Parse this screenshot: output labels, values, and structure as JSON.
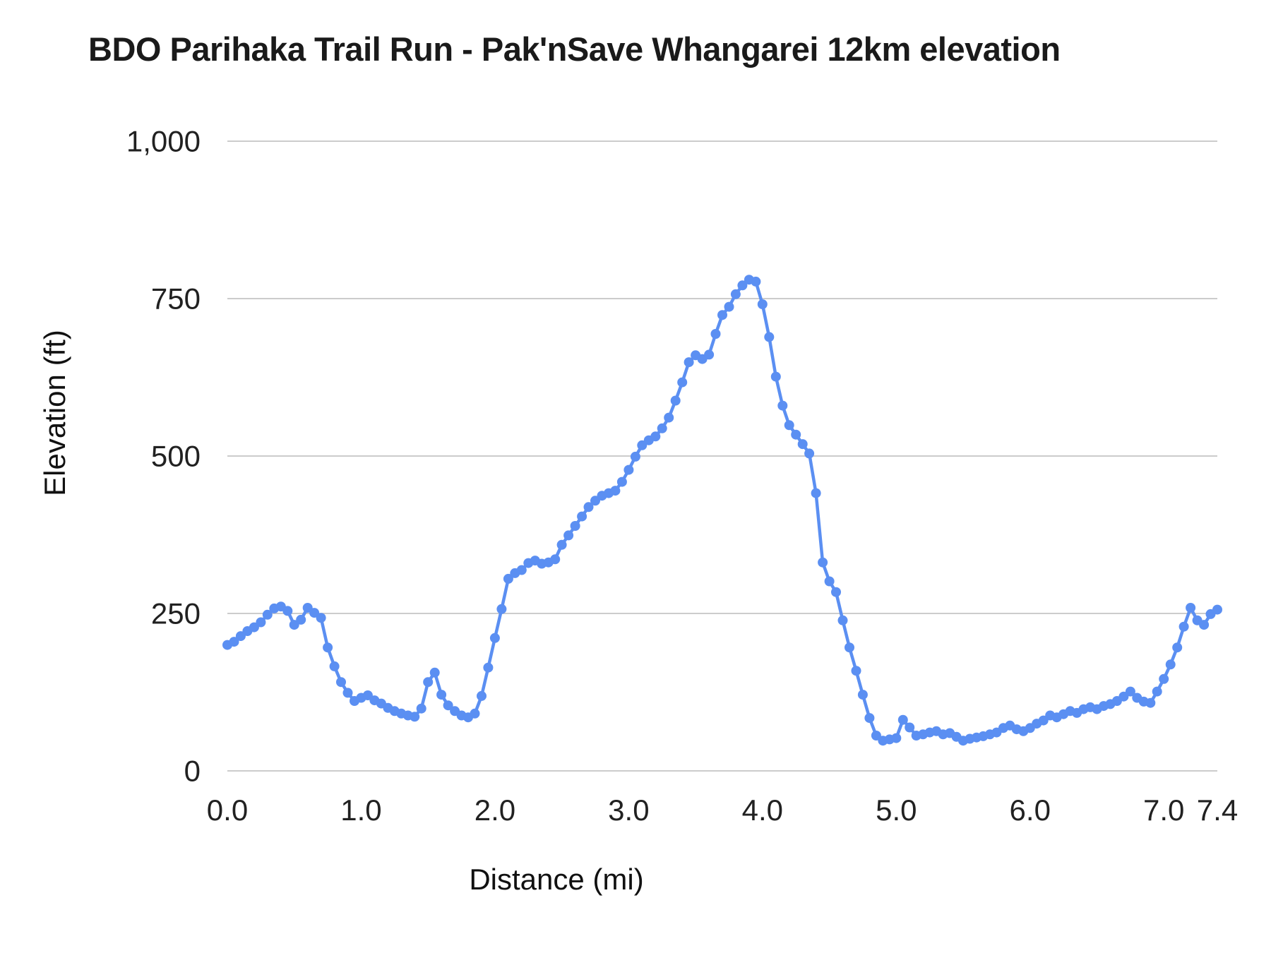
{
  "chart_data": {
    "type": "line",
    "title": "BDO Parihaka Trail Run - Pak'nSave Whangarei 12km elevation",
    "xlabel": "Distance (mi)",
    "ylabel": "Elevation (ft)",
    "xlim": [
      0,
      7.4
    ],
    "ylim": [
      0,
      1000
    ],
    "grid": true,
    "legend_position": "none",
    "line_color": "#5b8ff2",
    "gridline_color": "#cccccc",
    "point_radius": 7,
    "x_ticks": {
      "values": [
        0,
        1,
        2,
        3,
        4,
        5,
        6,
        7,
        7.4
      ],
      "labels": [
        "0.0",
        "1.0",
        "2.0",
        "3.0",
        "4.0",
        "5.0",
        "6.0",
        "7.0",
        "7.4"
      ]
    },
    "y_ticks": {
      "values": [
        0,
        250,
        500,
        750,
        1000
      ],
      "labels": [
        "0",
        "250",
        "500",
        "750",
        "1,000"
      ]
    },
    "series": [
      {
        "name": "Elevation",
        "points": [
          [
            0.0,
            200
          ],
          [
            0.05,
            205
          ],
          [
            0.1,
            214
          ],
          [
            0.15,
            222
          ],
          [
            0.2,
            228
          ],
          [
            0.25,
            236
          ],
          [
            0.3,
            248
          ],
          [
            0.35,
            258
          ],
          [
            0.4,
            261
          ],
          [
            0.45,
            254
          ],
          [
            0.5,
            232
          ],
          [
            0.55,
            240
          ],
          [
            0.6,
            259
          ],
          [
            0.65,
            251
          ],
          [
            0.7,
            243
          ],
          [
            0.75,
            196
          ],
          [
            0.8,
            166
          ],
          [
            0.85,
            141
          ],
          [
            0.9,
            124
          ],
          [
            0.95,
            111
          ],
          [
            1.0,
            116
          ],
          [
            1.05,
            120
          ],
          [
            1.1,
            112
          ],
          [
            1.15,
            107
          ],
          [
            1.2,
            100
          ],
          [
            1.25,
            95
          ],
          [
            1.3,
            91
          ],
          [
            1.35,
            88
          ],
          [
            1.4,
            86
          ],
          [
            1.45,
            99
          ],
          [
            1.5,
            141
          ],
          [
            1.55,
            156
          ],
          [
            1.6,
            121
          ],
          [
            1.65,
            104
          ],
          [
            1.7,
            95
          ],
          [
            1.75,
            88
          ],
          [
            1.8,
            85
          ],
          [
            1.85,
            91
          ],
          [
            1.9,
            119
          ],
          [
            1.95,
            164
          ],
          [
            2.0,
            211
          ],
          [
            2.05,
            257
          ],
          [
            2.1,
            305
          ],
          [
            2.15,
            314
          ],
          [
            2.2,
            319
          ],
          [
            2.25,
            330
          ],
          [
            2.3,
            334
          ],
          [
            2.35,
            329
          ],
          [
            2.4,
            331
          ],
          [
            2.45,
            336
          ],
          [
            2.5,
            359
          ],
          [
            2.55,
            374
          ],
          [
            2.6,
            389
          ],
          [
            2.65,
            404
          ],
          [
            2.7,
            419
          ],
          [
            2.75,
            429
          ],
          [
            2.8,
            437
          ],
          [
            2.85,
            441
          ],
          [
            2.9,
            445
          ],
          [
            2.95,
            459
          ],
          [
            3.0,
            478
          ],
          [
            3.05,
            499
          ],
          [
            3.1,
            517
          ],
          [
            3.15,
            525
          ],
          [
            3.2,
            531
          ],
          [
            3.25,
            544
          ],
          [
            3.3,
            561
          ],
          [
            3.35,
            588
          ],
          [
            3.4,
            617
          ],
          [
            3.45,
            649
          ],
          [
            3.5,
            660
          ],
          [
            3.55,
            654
          ],
          [
            3.6,
            661
          ],
          [
            3.65,
            694
          ],
          [
            3.7,
            724
          ],
          [
            3.75,
            737
          ],
          [
            3.8,
            757
          ],
          [
            3.85,
            771
          ],
          [
            3.9,
            780
          ],
          [
            3.95,
            777
          ],
          [
            4.0,
            741
          ],
          [
            4.05,
            689
          ],
          [
            4.1,
            626
          ],
          [
            4.15,
            580
          ],
          [
            4.2,
            549
          ],
          [
            4.25,
            534
          ],
          [
            4.3,
            519
          ],
          [
            4.35,
            504
          ],
          [
            4.4,
            441
          ],
          [
            4.45,
            331
          ],
          [
            4.5,
            301
          ],
          [
            4.55,
            284
          ],
          [
            4.6,
            239
          ],
          [
            4.65,
            196
          ],
          [
            4.7,
            159
          ],
          [
            4.75,
            121
          ],
          [
            4.8,
            84
          ],
          [
            4.85,
            56
          ],
          [
            4.9,
            48
          ],
          [
            4.95,
            50
          ],
          [
            5.0,
            52
          ],
          [
            5.05,
            81
          ],
          [
            5.1,
            69
          ],
          [
            5.15,
            56
          ],
          [
            5.2,
            58
          ],
          [
            5.25,
            61
          ],
          [
            5.3,
            63
          ],
          [
            5.35,
            58
          ],
          [
            5.4,
            60
          ],
          [
            5.45,
            54
          ],
          [
            5.5,
            48
          ],
          [
            5.55,
            51
          ],
          [
            5.6,
            53
          ],
          [
            5.65,
            55
          ],
          [
            5.7,
            58
          ],
          [
            5.75,
            61
          ],
          [
            5.8,
            68
          ],
          [
            5.85,
            72
          ],
          [
            5.9,
            66
          ],
          [
            5.95,
            63
          ],
          [
            6.0,
            68
          ],
          [
            6.05,
            75
          ],
          [
            6.1,
            80
          ],
          [
            6.15,
            88
          ],
          [
            6.2,
            85
          ],
          [
            6.25,
            90
          ],
          [
            6.3,
            95
          ],
          [
            6.35,
            92
          ],
          [
            6.4,
            98
          ],
          [
            6.45,
            101
          ],
          [
            6.5,
            98
          ],
          [
            6.55,
            103
          ],
          [
            6.6,
            106
          ],
          [
            6.65,
            111
          ],
          [
            6.7,
            118
          ],
          [
            6.75,
            126
          ],
          [
            6.8,
            116
          ],
          [
            6.85,
            110
          ],
          [
            6.9,
            108
          ],
          [
            6.95,
            126
          ],
          [
            7.0,
            146
          ],
          [
            7.05,
            169
          ],
          [
            7.1,
            196
          ],
          [
            7.15,
            229
          ],
          [
            7.2,
            259
          ],
          [
            7.25,
            239
          ],
          [
            7.3,
            232
          ],
          [
            7.35,
            249
          ],
          [
            7.4,
            256
          ]
        ]
      }
    ]
  }
}
